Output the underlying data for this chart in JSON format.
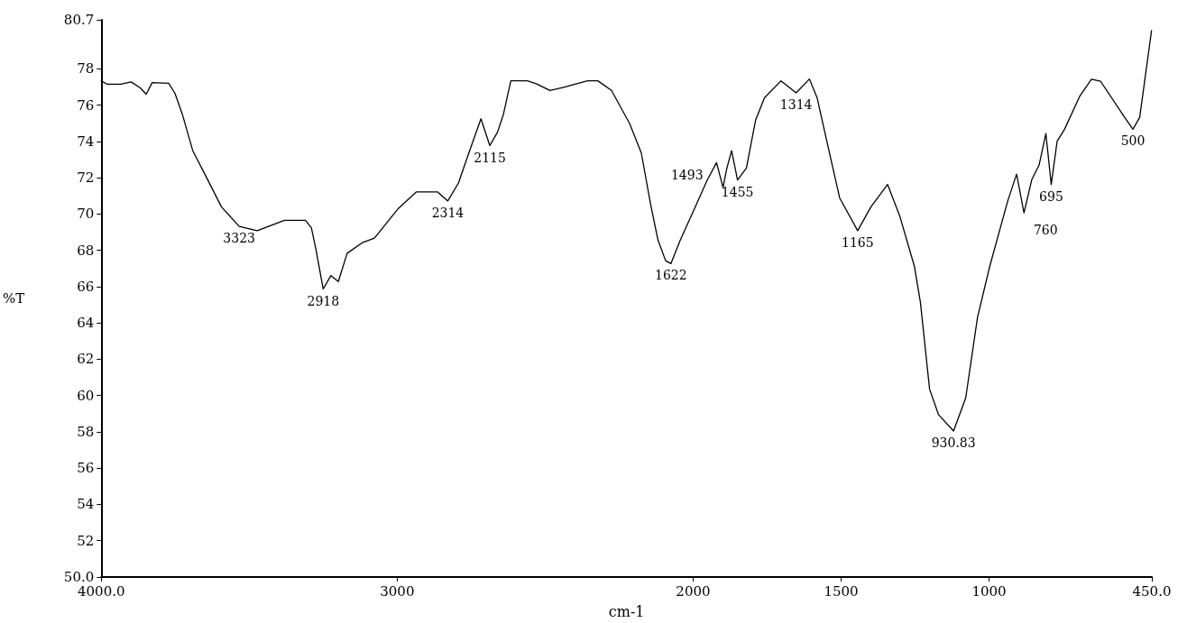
{
  "chart_data": {
    "type": "line",
    "xlabel": "cm-1",
    "ylabel": "%T",
    "x": [
      4000,
      3980,
      3934,
      3899,
      3868,
      3848,
      3828,
      3772,
      3751,
      3726,
      3691,
      3645,
      3594,
      3534,
      3473,
      3381,
      3310,
      3290,
      3275,
      3250,
      3224,
      3199,
      3169,
      3118,
      3077,
      2996,
      2935,
      2864,
      2829,
      2793,
      2758,
      2717,
      2687,
      2661,
      2641,
      2616,
      2560,
      2530,
      2484,
      2438,
      2357,
      2322,
      2276,
      2215,
      2175,
      2144,
      2119,
      2093,
      2075,
      2043,
      2002,
      1952,
      1921,
      1899,
      1886,
      1870,
      1850,
      1820,
      1789,
      1759,
      1703,
      1652,
      1607,
      1581,
      1546,
      1505,
      1444,
      1399,
      1343,
      1302,
      1252,
      1232,
      1201,
      1171,
      1120,
      1079,
      1039,
      998,
      937,
      907,
      882,
      856,
      831,
      808,
      790,
      770,
      745,
      694,
      654,
      623,
      542,
      514,
      491,
      451
    ],
    "series": [
      {
        "color": "#000000",
        "values": [
          77.34,
          77.15,
          77.15,
          77.28,
          76.95,
          76.6,
          77.24,
          77.2,
          76.65,
          75.5,
          73.5,
          72.04,
          70.4,
          69.32,
          69.08,
          69.65,
          69.65,
          69.24,
          68.09,
          65.87,
          66.61,
          66.28,
          67.84,
          68.42,
          68.67,
          70.31,
          71.22,
          71.22,
          70.72,
          71.71,
          73.36,
          75.25,
          73.77,
          74.51,
          75.5,
          77.34,
          77.34,
          77.18,
          76.81,
          76.98,
          77.34,
          77.34,
          76.81,
          75.0,
          73.36,
          70.56,
          68.58,
          67.43,
          67.27,
          68.58,
          70.06,
          71.88,
          72.83,
          71.47,
          72.53,
          73.49,
          71.88,
          72.53,
          75.17,
          76.4,
          77.34,
          76.68,
          77.44,
          76.4,
          73.85,
          70.89,
          69.08,
          70.4,
          71.63,
          69.9,
          67.1,
          65.13,
          60.35,
          58.95,
          58.05,
          59.86,
          64.31,
          67.1,
          70.72,
          72.2,
          70.06,
          71.88,
          72.7,
          74.43,
          71.63,
          74.01,
          74.67,
          76.48,
          77.43,
          77.31,
          75.33,
          74.67,
          75.33,
          80.11
        ]
      }
    ],
    "xlim": [
      4000,
      450
    ],
    "xticks": [
      {
        "value": 4000,
        "label": "4000.0"
      },
      3000,
      2000,
      1500,
      1000,
      {
        "value": 450,
        "label": "450.0"
      }
    ],
    "ylim": [
      50,
      80.7
    ],
    "yticks": [
      {
        "value": 50,
        "label": "50.0"
      },
      52,
      54,
      56,
      58,
      60,
      62,
      64,
      66,
      68,
      70,
      72,
      74,
      76,
      78,
      {
        "value": 80.7,
        "label": "80.7"
      }
    ],
    "grid": false,
    "marker": "none",
    "line_style": "solid",
    "annotations": [
      {
        "text": "3323",
        "x": 3534,
        "y": 69.32
      },
      {
        "text": "2918",
        "x": 3250,
        "y": 65.87
      },
      {
        "text": "2314",
        "x": 2829,
        "y": 70.72
      },
      {
        "text": "2115",
        "x": 2687,
        "y": 73.77
      },
      {
        "text": "1622",
        "x": 2075,
        "y": 67.27
      },
      {
        "text": "1493",
        "x": 1899,
        "y": 71.47
      },
      {
        "text": "1455",
        "x": 1850,
        "y": 71.88
      },
      {
        "text": "1314",
        "x": 1652,
        "y": 76.68
      },
      {
        "text": "1165",
        "x": 1444,
        "y": 69.08
      },
      {
        "text": "930.83",
        "x": 1120,
        "y": 58.05
      },
      {
        "text": "760",
        "x": 882,
        "y": 70.06
      },
      {
        "text": "695",
        "x": 790,
        "y": 71.63
      },
      {
        "text": "500",
        "x": 514,
        "y": 74.67
      }
    ]
  }
}
